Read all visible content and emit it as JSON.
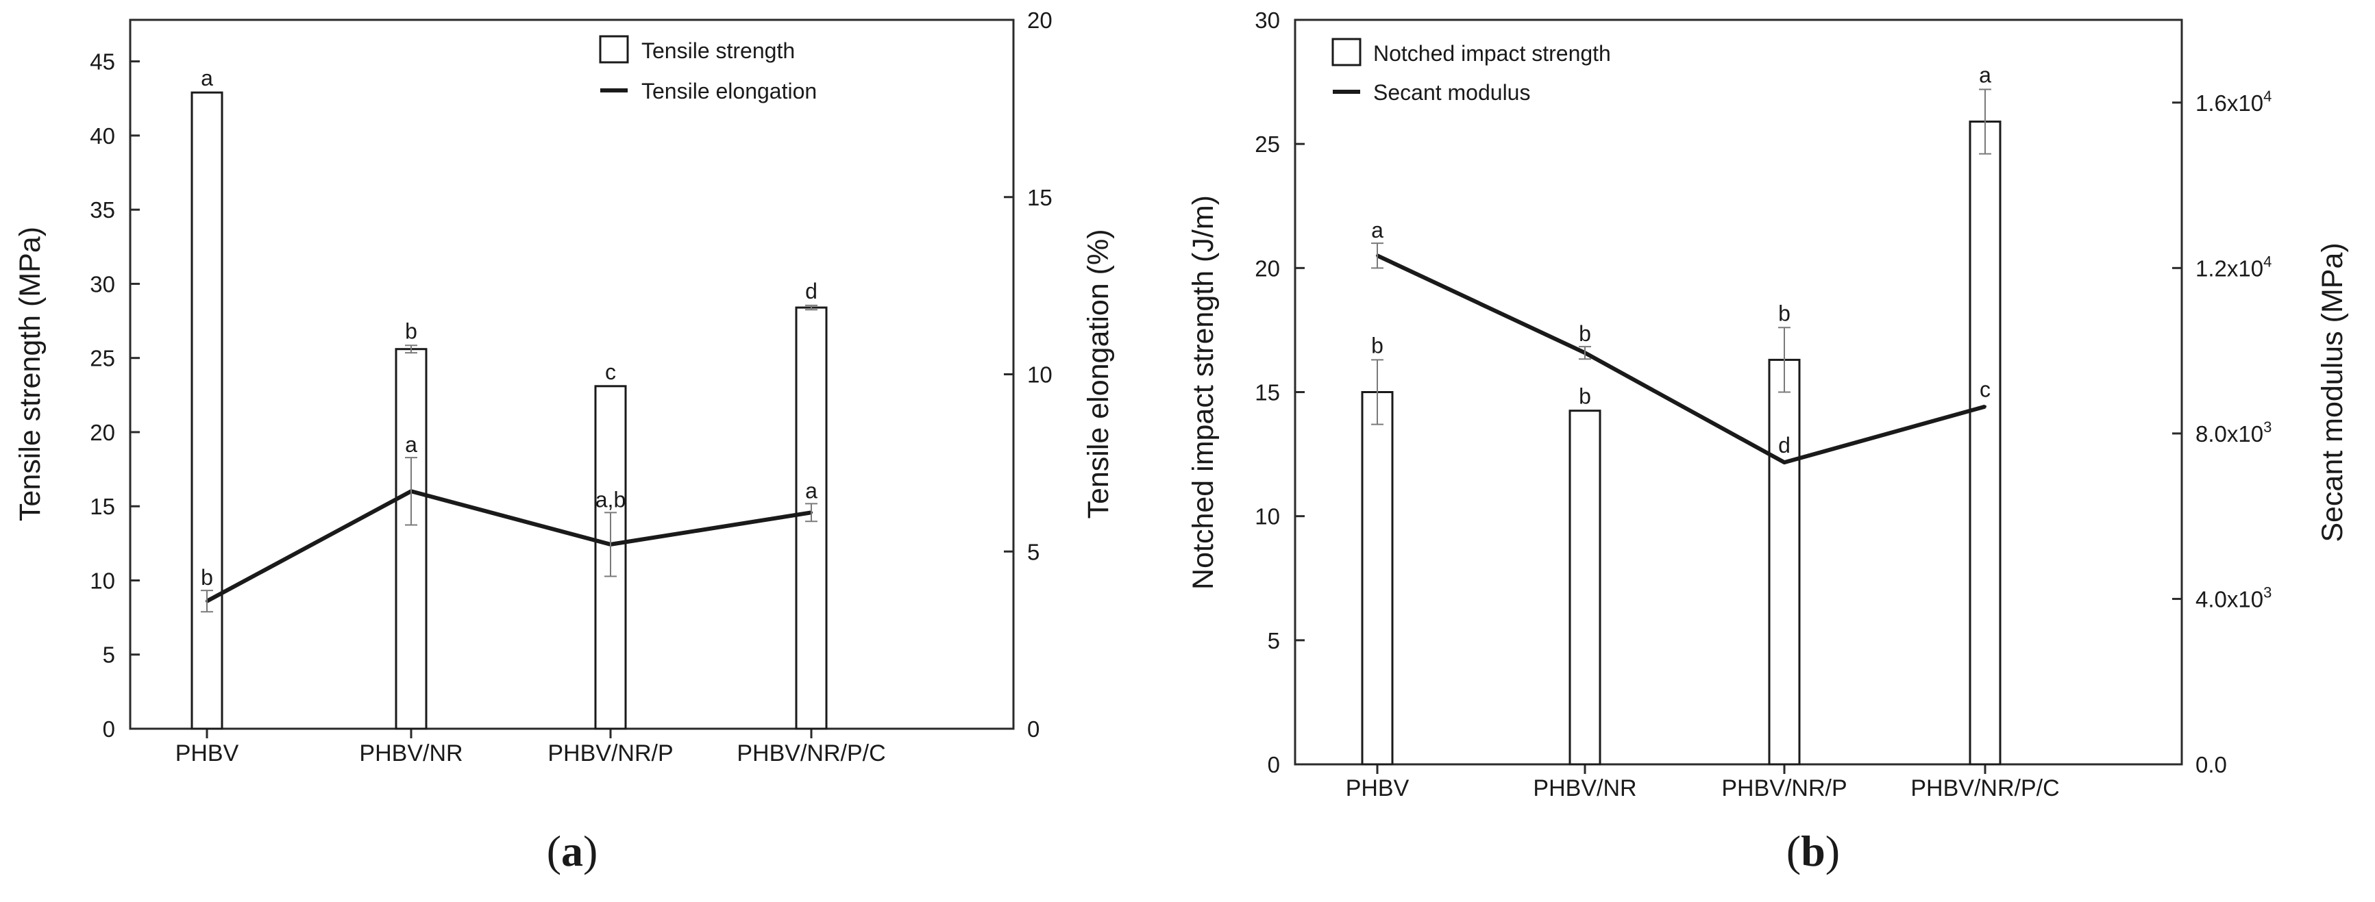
{
  "panels": [
    {
      "id": "a",
      "caption": "(a)",
      "caption_letter": "a",
      "chart_data": {
        "type": "bar",
        "categories": [
          "PHBV",
          "PHBV/NR",
          "PHBV/NR/P",
          "PHBV/NR/P/C"
        ],
        "series": [
          {
            "name": "Tensile strength",
            "kind": "bar",
            "axis": "left",
            "values": [
              42.9,
              25.6,
              23.1,
              28.4
            ],
            "errors": [
              0.0,
              0.25,
              0.0,
              0.15
            ],
            "labels": [
              "a",
              "b",
              "c",
              "d"
            ]
          },
          {
            "name": "Tensile elongation",
            "kind": "line",
            "axis": "right",
            "values": [
              3.6,
              6.7,
              5.2,
              6.1
            ],
            "errors": [
              0.3,
              0.95,
              0.9,
              0.25
            ],
            "labels": [
              "b",
              "a",
              "a,b",
              "a"
            ]
          }
        ],
        "y_left": {
          "label": "Tensile strength (MPa)",
          "lim": [
            0,
            47.8
          ],
          "ticks": [
            0,
            5,
            10,
            15,
            20,
            25,
            30,
            35,
            40,
            45
          ],
          "tick_labels": [
            "0",
            "5",
            "10",
            "15",
            "20",
            "25",
            "30",
            "35",
            "40",
            "45"
          ]
        },
        "y_right": {
          "label": "Tensile elongation (%)",
          "lim": [
            0,
            20
          ],
          "ticks": [
            0,
            5,
            10,
            15,
            20
          ],
          "tick_labels": [
            "0",
            "5",
            "10",
            "15",
            "20"
          ]
        },
        "legend": [
          "Tensile strength",
          "Tensile elongation"
        ],
        "legend_position": "top-right",
        "grid": false
      }
    },
    {
      "id": "b",
      "caption": "(b)",
      "caption_letter": "b",
      "chart_data": {
        "type": "bar",
        "categories": [
          "PHBV",
          "PHBV/NR",
          "PHBV/NR/P",
          "PHBV/NR/P/C"
        ],
        "series": [
          {
            "name": "Notched impact strength",
            "kind": "bar",
            "axis": "left",
            "values": [
              15.0,
              14.25,
              16.3,
              25.9
            ],
            "errors": [
              1.3,
              0.0,
              1.3,
              1.3
            ],
            "labels": [
              "b",
              "b",
              "b",
              "a"
            ]
          },
          {
            "name": "Secant modulus",
            "kind": "line",
            "axis": "right",
            "values": [
              12300,
              9950,
              7300,
              8650
            ],
            "errors": [
              300,
              150,
              0,
              0
            ],
            "labels": [
              "a",
              "b",
              "d",
              "c"
            ]
          }
        ],
        "y_left": {
          "label": "Notched impact strength (J/m)",
          "lim": [
            0,
            30
          ],
          "ticks": [
            0,
            5,
            10,
            15,
            20,
            25,
            30
          ],
          "tick_labels": [
            "0",
            "5",
            "10",
            "15",
            "20",
            "25",
            "30"
          ]
        },
        "y_right": {
          "label": "Secant modulus (MPa)",
          "lim": [
            0,
            18000
          ],
          "ticks": [
            0,
            4000,
            8000,
            12000,
            16000
          ],
          "tick_labels": [
            "0.0",
            "4.0x10",
            "8.0x10",
            "1.2x10",
            "1.6x10"
          ],
          "tick_exponents": [
            "",
            "3",
            "3",
            "4",
            "4"
          ]
        },
        "legend": [
          "Notched impact strength",
          "Secant modulus"
        ],
        "legend_position": "top-left",
        "grid": false
      }
    }
  ],
  "colors": {
    "bar_fill": "#ffffff",
    "bar_stroke": "#1a1a1a",
    "line": "#1a1a1a",
    "error_bar": "#7a7a7a",
    "frame": "#2a2a2a",
    "text": "#1a1a1a"
  }
}
